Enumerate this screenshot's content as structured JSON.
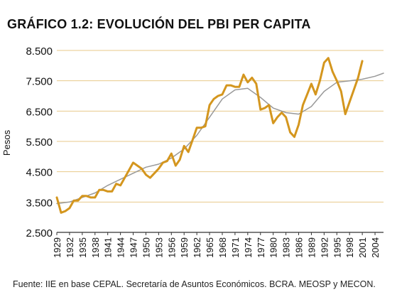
{
  "chart_data": {
    "type": "line",
    "title": "GRÁFICO 1.2: EVOLUCIÓN DEL PBI PER CAPITA",
    "ylabel": "Pesos",
    "xlabel": "",
    "ylim": [
      2500,
      8500
    ],
    "y_ticks": [
      2500,
      3500,
      4500,
      5500,
      6500,
      7500,
      8500
    ],
    "y_tick_labels": [
      "2.500",
      "3.500",
      "4.500",
      "5.500",
      "6.500",
      "7.500",
      "8.500"
    ],
    "x_ticks": [
      1929,
      1932,
      1935,
      1938,
      1941,
      1944,
      1947,
      1950,
      1953,
      1956,
      1959,
      1962,
      1965,
      1968,
      1971,
      1974,
      1977,
      1980,
      1983,
      1986,
      1989,
      1992,
      1995,
      1998,
      2001,
      2004
    ],
    "xlim": [
      1929,
      2006
    ],
    "grid": true,
    "colors": {
      "actual": "#d4961e",
      "trend": "#999999",
      "grid": "#e8c98a",
      "axis": "#333333"
    },
    "series": [
      {
        "values": [
          [
            1929,
            3650
          ],
          [
            1930,
            3150
          ],
          [
            1931,
            3200
          ],
          [
            1932,
            3300
          ],
          [
            1933,
            3550
          ],
          [
            1934,
            3550
          ],
          [
            1935,
            3700
          ],
          [
            1936,
            3700
          ],
          [
            1937,
            3650
          ],
          [
            1938,
            3650
          ],
          [
            1939,
            3900
          ],
          [
            1940,
            3900
          ],
          [
            1941,
            3850
          ],
          [
            1942,
            3850
          ],
          [
            1943,
            4100
          ],
          [
            1944,
            4050
          ],
          [
            1945,
            4300
          ],
          [
            1946,
            4550
          ],
          [
            1947,
            4800
          ],
          [
            1948,
            4700
          ],
          [
            1949,
            4600
          ],
          [
            1950,
            4400
          ],
          [
            1951,
            4300
          ],
          [
            1952,
            4450
          ],
          [
            1953,
            4600
          ],
          [
            1954,
            4800
          ],
          [
            1955,
            4850
          ],
          [
            1956,
            5100
          ],
          [
            1957,
            4700
          ],
          [
            1958,
            4900
          ],
          [
            1959,
            5350
          ],
          [
            1960,
            5150
          ],
          [
            1961,
            5550
          ],
          [
            1962,
            5950
          ],
          [
            1963,
            5950
          ],
          [
            1964,
            6000
          ],
          [
            1965,
            6700
          ],
          [
            1966,
            6900
          ],
          [
            1967,
            7000
          ],
          [
            1968,
            7050
          ],
          [
            1969,
            7350
          ],
          [
            1970,
            7350
          ],
          [
            1971,
            7300
          ],
          [
            1972,
            7300
          ],
          [
            1973,
            7700
          ],
          [
            1974,
            7450
          ],
          [
            1975,
            7600
          ],
          [
            1976,
            7400
          ],
          [
            1977,
            6550
          ],
          [
            1978,
            6600
          ],
          [
            1979,
            6700
          ],
          [
            1980,
            6100
          ],
          [
            1981,
            6300
          ],
          [
            1982,
            6450
          ],
          [
            1983,
            6300
          ],
          [
            1984,
            5800
          ],
          [
            1985,
            5650
          ],
          [
            1986,
            6050
          ],
          [
            1987,
            6700
          ],
          [
            1988,
            7050
          ],
          [
            1989,
            7400
          ],
          [
            1990,
            7050
          ],
          [
            1991,
            7500
          ],
          [
            1992,
            8100
          ],
          [
            1993,
            8250
          ],
          [
            1994,
            7800
          ],
          [
            1995,
            7500
          ],
          [
            1996,
            7150
          ],
          [
            1997,
            6400
          ],
          [
            1998,
            6800
          ],
          [
            1999,
            7200
          ],
          [
            2000,
            7600
          ],
          [
            2001,
            8150
          ]
        ]
      },
      {
        "values": [
          [
            1929,
            3450
          ],
          [
            1932,
            3500
          ],
          [
            1935,
            3650
          ],
          [
            1938,
            3800
          ],
          [
            1941,
            4050
          ],
          [
            1944,
            4250
          ],
          [
            1947,
            4450
          ],
          [
            1950,
            4650
          ],
          [
            1953,
            4750
          ],
          [
            1956,
            4950
          ],
          [
            1959,
            5250
          ],
          [
            1962,
            5700
          ],
          [
            1965,
            6300
          ],
          [
            1968,
            6900
          ],
          [
            1971,
            7200
          ],
          [
            1974,
            7250
          ],
          [
            1977,
            6950
          ],
          [
            1980,
            6600
          ],
          [
            1983,
            6450
          ],
          [
            1986,
            6400
          ],
          [
            1989,
            6650
          ],
          [
            1992,
            7150
          ],
          [
            1995,
            7450
          ],
          [
            1998,
            7500
          ],
          [
            2001,
            7550
          ],
          [
            2004,
            7650
          ],
          [
            2006,
            7750
          ]
        ]
      }
    ]
  },
  "source_note": "Fuente: IIE en base CEPAL. Secretaría de Asuntos Económicos. BCRA. MEOSP y MECON."
}
